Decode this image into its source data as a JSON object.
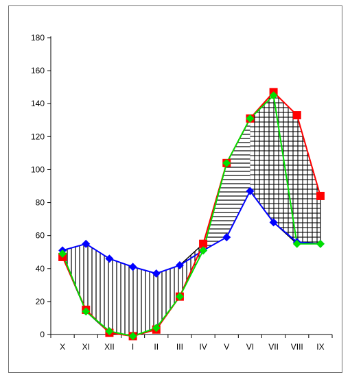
{
  "chart_data": {
    "type": "line",
    "title": "",
    "xlabel": "",
    "ylabel": "",
    "categories": [
      "X",
      "XI",
      "XII",
      "I",
      "II",
      "III",
      "IV",
      "V",
      "VI",
      "VII",
      "VIII",
      "IX"
    ],
    "ylim": [
      0,
      180
    ],
    "yticks": [
      "0",
      "20",
      "40",
      "60",
      "80",
      "100",
      "120",
      "140",
      "160",
      "180"
    ],
    "grid": false,
    "legend": "none",
    "series": [
      {
        "color": "#0000ff",
        "marker": "diamond",
        "values": [
          51,
          55,
          46,
          41,
          37,
          42,
          51,
          59,
          87,
          68,
          56,
          55
        ]
      },
      {
        "color": "#ff0000",
        "marker": "square",
        "values": [
          47,
          15,
          1,
          -1,
          3,
          23,
          55,
          104,
          131,
          147,
          133,
          84
        ]
      },
      {
        "color": "#00e000",
        "marker": "diamond",
        "values": [
          49,
          14,
          2,
          -1,
          4,
          23,
          51,
          104,
          131,
          145,
          55,
          55
        ]
      }
    ],
    "shaded_regions": [
      {
        "pattern": "vertical-lines",
        "from": "X",
        "to": "IV",
        "between": "upper curve and lower curve"
      },
      {
        "pattern": "horizontal-lines",
        "from": "IV",
        "to": "VI",
        "between": "upper curve and lower curve"
      },
      {
        "pattern": "grid",
        "from": "VI",
        "to": "IX",
        "between": "upper curve and lower curve"
      }
    ]
  }
}
